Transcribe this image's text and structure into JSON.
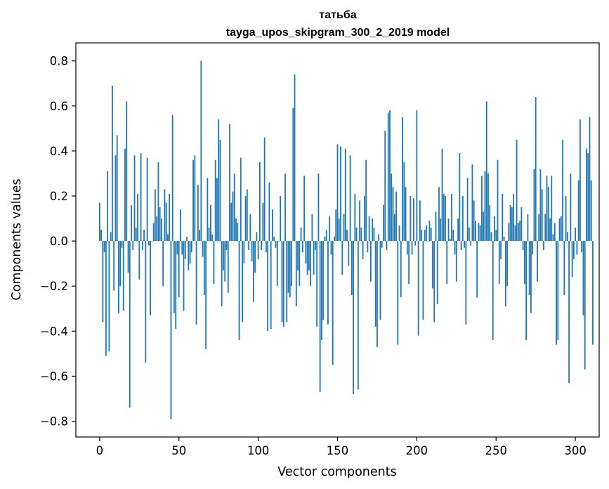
{
  "chart_data": {
    "type": "bar",
    "title": "татьба",
    "subtitle": "tayga_upos_skipgram_300_2_2019 model",
    "xlabel": "Vector components",
    "ylabel": "Components values",
    "xlim": [
      -15,
      315
    ],
    "ylim": [
      -0.87,
      0.88
    ],
    "xticks": [
      0,
      50,
      100,
      150,
      200,
      250,
      300
    ],
    "yticks": [
      0.8,
      0.6,
      0.4,
      0.2,
      0.0,
      -0.2,
      -0.4,
      -0.6,
      -0.8
    ],
    "xtick_labels": [
      "0",
      "50",
      "100",
      "150",
      "200",
      "250",
      "300"
    ],
    "ytick_labels": [
      "0.8",
      "0.6",
      "0.4",
      "0.2",
      "0.0",
      "−0.2",
      "−0.4",
      "−0.6",
      "−0.8"
    ],
    "bar_color": "#1f77b4",
    "grid": false,
    "values": [
      0.17,
      0.05,
      -0.36,
      -0.05,
      -0.51,
      0.31,
      -0.49,
      0.04,
      0.69,
      -0.22,
      0.38,
      0.47,
      -0.32,
      -0.2,
      -0.03,
      -0.31,
      0.41,
      0.62,
      -0.14,
      -0.74,
      0.16,
      -0.04,
      0.38,
      0.06,
      0.21,
      -0.17,
      0.39,
      -0.04,
      0.05,
      -0.54,
      0.37,
      -0.02,
      -0.33,
      0.0,
      0.08,
      0.23,
      0.11,
      0.35,
      0.15,
      0.1,
      -0.2,
      0.23,
      0.17,
      0.03,
      0.21,
      -0.79,
      0.56,
      -0.32,
      -0.39,
      -0.06,
      -0.25,
      0.14,
      -0.06,
      -0.31,
      -0.08,
      0.02,
      -0.13,
      -0.1,
      -0.05,
      0.36,
      0.38,
      -0.37,
      0.25,
      0.05,
      0.8,
      -0.07,
      -0.24,
      -0.48,
      0.28,
      0.06,
      0.16,
      0.03,
      -0.19,
      0.36,
      0.28,
      0.54,
      0.45,
      -0.29,
      -0.13,
      -0.18,
      -0.04,
      -0.23,
      0.52,
      0.17,
      0.22,
      0.3,
      0.1,
      0.08,
      -0.44,
      0.37,
      -0.36,
      -0.1,
      0.2,
      0.23,
      -0.04,
      0.12,
      -0.09,
      -0.27,
      -0.14,
      0.04,
      -0.08,
      0.35,
      -0.04,
      0.17,
      0.46,
      -0.05,
      -0.4,
      0.26,
      -0.39,
      0.14,
      0.02,
      -0.03,
      -0.2,
      0.0,
      0.2,
      -0.36,
      -0.38,
      0.3,
      -0.36,
      -0.23,
      -0.25,
      -0.2,
      0.59,
      0.74,
      -0.29,
      -0.13,
      -0.2,
      0.06,
      -0.05,
      0.29,
      -0.1,
      -0.15,
      -0.13,
      -0.2,
      0.12,
      -0.15,
      -0.04,
      -0.38,
      0.3,
      -0.67,
      -0.44,
      -0.35,
      0.02,
      0.05,
      -0.37,
      0.11,
      -0.06,
      -0.55,
      0.02,
      0.14,
      0.43,
      0.1,
      0.42,
      -0.15,
      0.12,
      0.41,
      0.05,
      -0.11,
      0.38,
      -0.24,
      -0.68,
      0.21,
      0.06,
      -0.66,
      0.18,
      0.06,
      -0.08,
      0.2,
      0.36,
      -0.05,
      0.11,
      -0.18,
      0.1,
      0.06,
      -0.38,
      -0.47,
      0.03,
      -0.35,
      -0.03,
      0.16,
      0.49,
      -0.04,
      0.57,
      0.58,
      0.3,
      0.24,
      0.12,
      0.22,
      -0.46,
      0.07,
      -0.25,
      0.55,
      0.35,
      0.24,
      -0.06,
      -0.19,
      0.2,
      -0.06,
      0.19,
      -0.02,
      0.58,
      -0.42,
      0.18,
      0.05,
      -0.35,
      0.05,
      0.07,
      0.0,
      0.09,
      0.06,
      -0.21,
      -0.36,
      0.13,
      -0.28,
      0.24,
      0.1,
      0.41,
      0.21,
      0.2,
      -0.19,
      0.1,
      0.01,
      0.21,
      0.05,
      -0.06,
      -0.18,
      0.1,
      0.39,
      -0.04,
      0.2,
      -0.03,
      -0.37,
      0.28,
      0.06,
      -0.02,
      0.34,
      0.18,
      0.09,
      -0.25,
      0.08,
      0.07,
      0.29,
      0.13,
      0.31,
      0.62,
      0.3,
      0.16,
      0.04,
      -0.44,
      0.11,
      0.05,
      0.36,
      -0.19,
      -0.08,
      0.21,
      0.02,
      -0.29,
      -0.2,
      0.08,
      0.16,
      0.15,
      0.21,
      0.07,
      0.45,
      0.08,
      0.09,
      0.15,
      -0.04,
      -0.19,
      -0.44,
      0.12,
      -0.24,
      -0.32,
      -0.06,
      0.32,
      0.64,
      -0.18,
      0.12,
      0.32,
      0.23,
      -0.04,
      0.12,
      0.29,
      0.24,
      0.1,
      0.29,
      0.03,
      0.08,
      -0.46,
      -0.44,
      0.1,
      0.11,
      0.45,
      -0.24,
      0.2,
      0.04,
      -0.63,
      0.3,
      -0.16,
      -0.08,
      0.06,
      -0.06,
      0.27,
      0.54,
      -0.05,
      -0.33,
      -0.57,
      0.41,
      0.39,
      0.55,
      0.27,
      -0.46
    ]
  }
}
